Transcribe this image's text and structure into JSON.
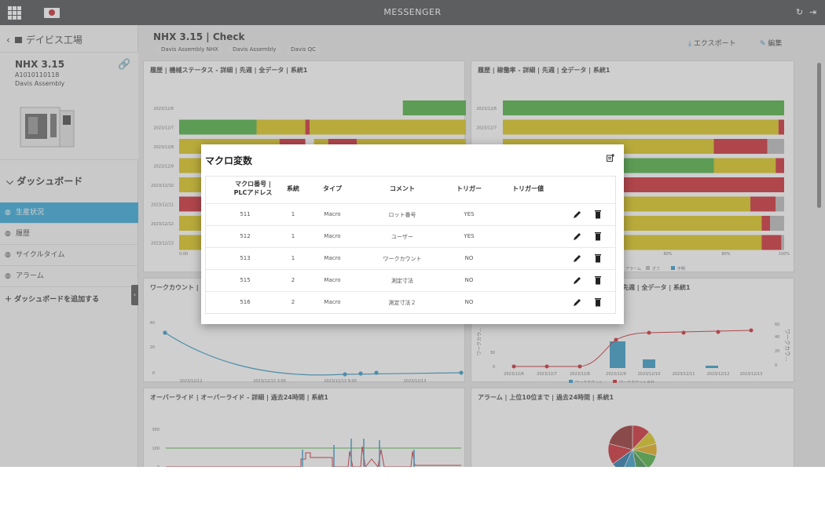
{
  "app": {
    "title": "MESSENGER"
  },
  "sidebar": {
    "back_label": "デイビス工場",
    "device": {
      "name": "NHX 3.15",
      "id": "A1010110118",
      "line": "Davis Assembly"
    },
    "dashboard_heading": "ダッシュボード",
    "items": [
      {
        "label": "生産状況",
        "active": true
      },
      {
        "label": "履歴",
        "active": false
      },
      {
        "label": "サイクルタイム",
        "active": false
      },
      {
        "label": "アラーム",
        "active": false
      }
    ],
    "add_dashboard": "ダッシュボードを追加する"
  },
  "header": {
    "title": "NHX 3.15 | Check",
    "tags": [
      "Davis Assembly NHX",
      "Davis Assembly",
      "Davis QC"
    ],
    "export_label": "エクスポート",
    "edit_label": "編集"
  },
  "cards": {
    "history_status": "履歴 | 機械ステータス - 詳細 | 先週 | 全データ | 系統1",
    "history_rate": "履歴 | 稼働率 - 詳細 | 先週 | 全データ | 系統1",
    "work_count": "ワークカウント |",
    "work_count_right": "先週 | 全データ | 系統1",
    "override": "オーバーライド | オーバーライド - 詳細 | 過去24時間 | 系統1",
    "alarm": "アラーム | 上位10位まで | 過去24時間 | 系統1"
  },
  "status_chart": {
    "dates": [
      "2023/12/6",
      "2023/12/7",
      "2023/12/8",
      "2023/12/9",
      "2023/12/10",
      "2023/12/11",
      "2023/12/12",
      "2023/12/13"
    ],
    "x_ticks": [
      "0:00"
    ]
  },
  "rate_chart": {
    "dates": [
      "2023/12/6",
      "2023/12/7",
      "2023/12/8",
      "2023/12/9",
      "2023/12/10",
      "2023/12/11",
      "2023/12/12",
      "2023/12/13"
    ],
    "x_ticks": [
      "60%",
      "80%",
      "100%"
    ],
    "legend": [
      "アラーム",
      "オフ",
      "不明"
    ]
  },
  "work_chart": {
    "y_ticks": [
      "40",
      "20",
      "0"
    ],
    "x_ticks": [
      "2023/12/12\n21:00",
      "2023/12/13 3:00",
      "2023/12/13 9:00",
      "2023/12/13\n15:00"
    ]
  },
  "bar_line_chart": {
    "x_ticks": [
      "2023/12/6",
      "2023/12/7",
      "2023/12/8",
      "2023/12/9",
      "2023/12/10",
      "2023/12/11",
      "2023/12/12",
      "2023/12/13"
    ],
    "y_left": [
      "30",
      "0"
    ],
    "y_right": [
      "60",
      "40",
      "20",
      "0"
    ],
    "y_right_label": "ワークカウ...",
    "y_left_label": "ワークカウ...",
    "legend": [
      "ワークカウント",
      "ワークカウント合計"
    ]
  },
  "override_chart": {
    "y_ticks": [
      "100",
      "0"
    ],
    "y_top": "300"
  },
  "colors": {
    "green": "#3aa82e",
    "yellow": "#d7bf00",
    "red": "#c8141e",
    "gray": "#b4b4b4",
    "blue": "#1f8fc0",
    "topbar": "#3a3d40"
  },
  "modal": {
    "title": "マクロ変数",
    "columns": [
      "マクロ番号 |\nPLCアドレス",
      "系統",
      "タイプ",
      "コメント",
      "トリガー",
      "トリガー値"
    ],
    "rows": [
      {
        "id": "511",
        "line": "1",
        "type": "Macro",
        "comment": "ロット番号",
        "trigger": "YES",
        "value": ""
      },
      {
        "id": "512",
        "line": "1",
        "type": "Macro",
        "comment": "ユーザー",
        "trigger": "YES",
        "value": ""
      },
      {
        "id": "513",
        "line": "1",
        "type": "Macro",
        "comment": "ワークカウント",
        "trigger": "NO",
        "value": ""
      },
      {
        "id": "515",
        "line": "2",
        "type": "Macro",
        "comment": "測定寸法",
        "trigger": "NO",
        "value": ""
      },
      {
        "id": "516",
        "line": "2",
        "type": "Macro",
        "comment": "測定寸法２",
        "trigger": "NO",
        "value": ""
      }
    ]
  }
}
